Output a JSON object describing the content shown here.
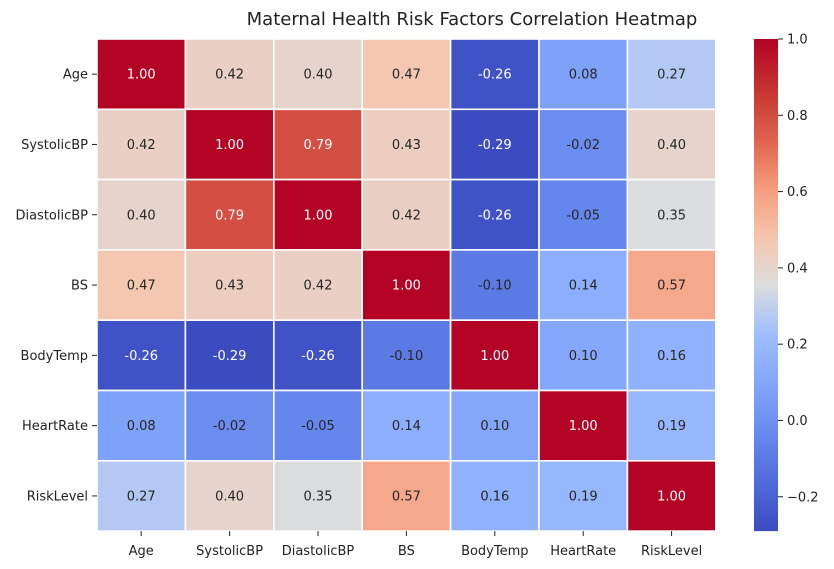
{
  "chart_data": {
    "type": "heatmap",
    "title": "Maternal Health Risk Factors Correlation Heatmap",
    "xlabel": "",
    "ylabel": "",
    "x_categories": [
      "Age",
      "SystolicBP",
      "DiastolicBP",
      "BS",
      "BodyTemp",
      "HeartRate",
      "RiskLevel"
    ],
    "y_categories": [
      "Age",
      "SystolicBP",
      "DiastolicBP",
      "BS",
      "BodyTemp",
      "HeartRate",
      "RiskLevel"
    ],
    "values": [
      [
        1.0,
        0.42,
        0.4,
        0.47,
        -0.26,
        0.08,
        0.27
      ],
      [
        0.42,
        1.0,
        0.79,
        0.43,
        -0.29,
        -0.02,
        0.4
      ],
      [
        0.4,
        0.79,
        1.0,
        0.42,
        -0.26,
        -0.05,
        0.35
      ],
      [
        0.47,
        0.43,
        0.42,
        1.0,
        -0.1,
        0.14,
        0.57
      ],
      [
        -0.26,
        -0.29,
        -0.26,
        -0.1,
        1.0,
        0.1,
        0.16
      ],
      [
        0.08,
        -0.02,
        -0.05,
        0.14,
        0.1,
        1.0,
        0.19
      ],
      [
        0.27,
        0.4,
        0.35,
        0.57,
        0.16,
        0.19,
        1.0
      ]
    ],
    "value_format": "2 decimals",
    "colormap": "coolwarm",
    "value_range": [
      -0.29,
      1.0
    ],
    "colorbar_ticks": [
      -0.2,
      0.0,
      0.2,
      0.4,
      0.6,
      0.8,
      1.0
    ],
    "colorbar_tick_labels": [
      "−0.2",
      "0.0",
      "0.2",
      "0.4",
      "0.6",
      "0.8",
      "1.0"
    ],
    "grid": false,
    "cell_borders": true,
    "legend_position": "right colorbar"
  }
}
